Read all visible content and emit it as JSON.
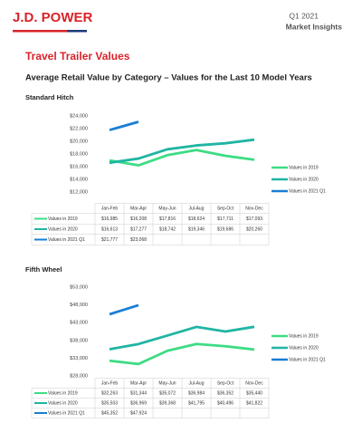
{
  "header": {
    "brand": "J.D. POWER",
    "period": "Q1 2021",
    "series_name": "Market Insights"
  },
  "title": "Travel Trailer Values",
  "subtitle": "Average Retail Value by Category – Values for the Last 10 Model Years",
  "chart_data": [
    {
      "type": "line",
      "title": "Standard Hitch",
      "categories": [
        "Jan-Feb",
        "Mar-Apr",
        "May-Jun",
        "Jul-Aug",
        "Sep-Oct",
        "Nov-Dec"
      ],
      "ylim": [
        12000,
        24000
      ],
      "yticks": [
        {
          "value": 12000,
          "label": "$12,000"
        },
        {
          "value": 14000,
          "label": "$14,000"
        },
        {
          "value": 16000,
          "label": "$16,000"
        },
        {
          "value": 18000,
          "label": "$18,000"
        },
        {
          "value": 20000,
          "label": "$20,000"
        },
        {
          "value": 22000,
          "label": "$22,000"
        },
        {
          "value": 24000,
          "label": "$24,000"
        }
      ],
      "series": [
        {
          "name": "Values in 2019",
          "color": "#3ddc84",
          "values": [
            16985,
            16208,
            17816,
            18624,
            17711,
            17093
          ],
          "value_labels": [
            "$16,985",
            "$16,208",
            "$17,816",
            "$18,624",
            "$17,711",
            "$17,093"
          ]
        },
        {
          "name": "Values in 2020",
          "color": "#1fb5a3",
          "values": [
            16613,
            17277,
            18742,
            19346,
            19686,
            20260
          ],
          "value_labels": [
            "$16,613",
            "$17,277",
            "$18,742",
            "$19,346",
            "$19,686",
            "$20,260"
          ]
        },
        {
          "name": "Values in 2021 Q1",
          "color": "#1a7fd4",
          "values": [
            21777,
            23068,
            null,
            null,
            null,
            null
          ],
          "value_labels": [
            "$21,777",
            "$23,068",
            null,
            null,
            null,
            null
          ]
        }
      ]
    },
    {
      "type": "line",
      "title": "Fifth Wheel",
      "categories": [
        "Jan-Feb",
        "Mar-Apr",
        "May-Jun",
        "Jul-Aug",
        "Sep-Oct",
        "Nov-Dec"
      ],
      "ylim": [
        28000,
        53000
      ],
      "yticks": [
        {
          "value": 28000,
          "label": "$28,000"
        },
        {
          "value": 33000,
          "label": "$33,000"
        },
        {
          "value": 38000,
          "label": "$38,000"
        },
        {
          "value": 43000,
          "label": "$43,000"
        },
        {
          "value": 48000,
          "label": "$48,000"
        },
        {
          "value": 53000,
          "label": "$53,000"
        }
      ],
      "series": [
        {
          "name": "Values in 2019",
          "color": "#3ddc84",
          "values": [
            32263,
            31344,
            35072,
            36984,
            36352,
            35440
          ],
          "value_labels": [
            "$32,263",
            "$31,344",
            "$35,072",
            "$36,984",
            "$36,352",
            "$35,440"
          ]
        },
        {
          "name": "Values in 2020",
          "color": "#1fb5a3",
          "values": [
            35503,
            36969,
            39368,
            41795,
            40496,
            41822
          ],
          "value_labels": [
            "$35,503",
            "$36,969",
            "$39,368",
            "$41,795",
            "$40,496",
            "$41,822"
          ]
        },
        {
          "name": "Values in 2021 Q1",
          "color": "#1a7fd4",
          "values": [
            45352,
            47924,
            null,
            null,
            null,
            null
          ],
          "value_labels": [
            "$45,352",
            "$47,924",
            null,
            null,
            null,
            null
          ]
        }
      ]
    }
  ]
}
